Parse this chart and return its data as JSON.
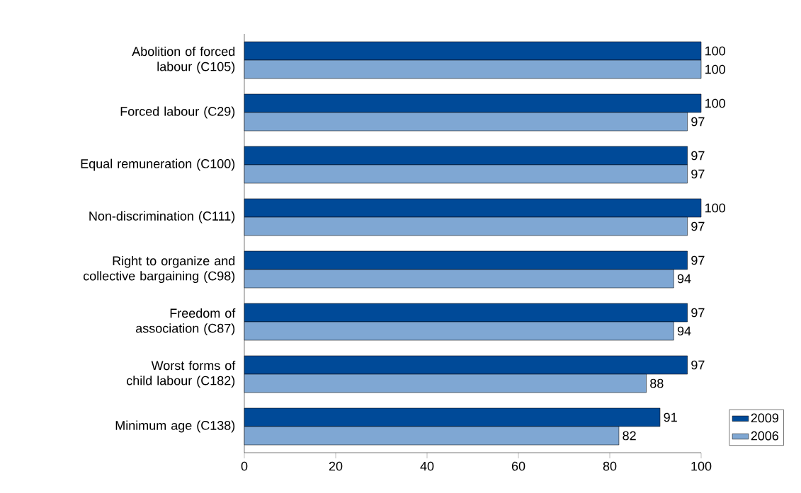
{
  "chart_data": {
    "type": "bar",
    "orientation": "horizontal",
    "categories": [
      "Abolition of forced labour (C105)",
      "Forced labour (C29)",
      "Equal remuneration (C100)",
      "Non-discrimination (C111)",
      "Right to organize and collective bargaining (C98)",
      "Freedom of association (C87)",
      "Worst forms of child labour (C182)",
      "Minimum age (C138)"
    ],
    "series": [
      {
        "name": "2009",
        "color": "#004a98",
        "values": [
          100,
          100,
          97,
          100,
          97,
          97,
          97,
          91
        ]
      },
      {
        "name": "2006",
        "color": "#7fa7d3",
        "values": [
          100,
          97,
          97,
          97,
          94,
          94,
          88,
          82
        ]
      }
    ],
    "xlim": [
      0,
      100
    ],
    "xticks": [
      0,
      20,
      40,
      60,
      80,
      100
    ],
    "data_labels": true,
    "legend": "bottom right",
    "grid": false
  }
}
